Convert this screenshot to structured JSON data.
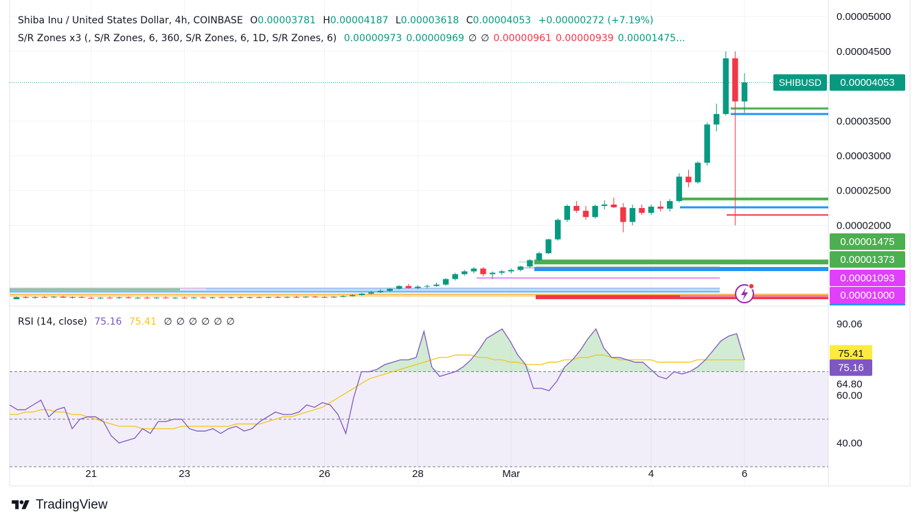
{
  "header": {
    "symbol": "Shiba Inu / United States Dollar, 4h, COINBASE",
    "o_label": "O",
    "o_value": "0.00003781",
    "h_label": "H",
    "h_value": "0.00004187",
    "l_label": "L",
    "l_value": "0.00003618",
    "c_label": "C",
    "c_value": "0.00004053",
    "change": "+0.00000272 (+7.19%)"
  },
  "sr_legend": {
    "label": "S/R Zones x3 (, S/R Zones, 6, 360, S/R Zones, 6, 1D, S/R Zones, 6)",
    "values": [
      {
        "text": "0.00000973",
        "color": "#089981"
      },
      {
        "text": "0.00000969",
        "color": "#089981"
      },
      {
        "text": "∅",
        "color": "#131722"
      },
      {
        "text": "∅",
        "color": "#131722"
      },
      {
        "text": "0.00000961",
        "color": "#f23645"
      },
      {
        "text": "0.00000939",
        "color": "#f23645"
      },
      {
        "text": "0.00001475...",
        "color": "#089981"
      }
    ]
  },
  "rsi_legend": {
    "label": "RSI (14, close)",
    "rsi_value": "75.16",
    "ma_value": "75.41",
    "empties": [
      "∅",
      "∅",
      "∅",
      "∅",
      "∅",
      "∅"
    ]
  },
  "price_badges": [
    {
      "text": "SHIBUSD",
      "bg": "#089981"
    },
    {
      "text": "0.00004053",
      "bg": "#089981"
    }
  ],
  "zone_badges": [
    {
      "text": "0.00001475",
      "bg": "#4caf50",
      "value": 1.475e-05
    },
    {
      "text": "0.00001373",
      "bg": "#4caf50",
      "value": 1.373e-05
    },
    {
      "text": "0.00001093",
      "bg": "#e040fb",
      "value": 1.093e-05
    },
    {
      "text": "0.00001000",
      "bg": "#e040fb",
      "value": 1e-05
    }
  ],
  "rsi_badges": [
    {
      "text": "75.41",
      "bg": "#ffeb3b",
      "fg": "#131722"
    },
    {
      "text": "75.16",
      "bg": "#7e57c2",
      "fg": "#ffffff"
    }
  ],
  "footer": {
    "brand": "TradingView"
  },
  "colors": {
    "up": "#089981",
    "down": "#f23645",
    "rsi": "#7e57c2",
    "rsi_ma": "#f5c518",
    "zone_green": "#4caf50",
    "zone_blue": "#2196f3",
    "zone_red": "#f23645",
    "zone_pink": "#e040fb"
  },
  "chart_data": [
    {
      "type": "candlestick",
      "title": "Shiba Inu / United States Dollar, 4h, COINBASE",
      "y_axis": {
        "scale": "linear",
        "ticks": [
          "0.00005000",
          "0.00004500",
          "0.00003500",
          "0.00003000",
          "0.00002500",
          "0.00002000"
        ],
        "tick_values": [
          5e-05,
          4.5e-05,
          3.5e-05,
          3e-05,
          2.5e-05,
          2e-05
        ],
        "ylim": [
          9e-06,
          5.1e-05
        ]
      },
      "x_axis": {
        "ticks": [
          "21",
          "23",
          "26",
          "28",
          "Mar",
          "4",
          "6"
        ],
        "tick_index": [
          8,
          18,
          33,
          43,
          53,
          68,
          78
        ]
      },
      "last_price": 4.053e-05,
      "candles": [
        [
          9.4e-06,
          9.8e-06,
          9.6e-06,
          9.7e-06
        ],
        [
          9.7e-06,
          9.85e-06,
          9.5e-06,
          9.6e-06
        ],
        [
          9.6e-06,
          9.8e-06,
          9.45e-06,
          9.7e-06
        ],
        [
          9.7e-06,
          9.9e-06,
          9.6e-06,
          9.65e-06
        ],
        [
          9.65e-06,
          9.85e-06,
          9.55e-06,
          9.75e-06
        ],
        [
          9.75e-06,
          9.9e-06,
          9.6e-06,
          9.62e-06
        ],
        [
          9.62e-06,
          9.8e-06,
          9.5e-06,
          9.7e-06
        ],
        [
          9.7e-06,
          9.85e-06,
          9.58e-06,
          9.6e-06
        ],
        [
          9.6e-06,
          9.75e-06,
          9.45e-06,
          9.55e-06
        ],
        [
          9.55e-06,
          9.7e-06,
          9.4e-06,
          9.62e-06
        ],
        [
          9.62e-06,
          9.8e-06,
          9.5e-06,
          9.58e-06
        ],
        [
          9.58e-06,
          9.75e-06,
          9.45e-06,
          9.66e-06
        ],
        [
          9.66e-06,
          9.8e-06,
          9.5e-06,
          9.58e-06
        ],
        [
          9.58e-06,
          9.72e-06,
          9.46e-06,
          9.62e-06
        ],
        [
          9.62e-06,
          9.78e-06,
          9.5e-06,
          9.55e-06
        ],
        [
          9.55e-06,
          9.7e-06,
          9.45e-06,
          9.63e-06
        ],
        [
          9.63e-06,
          9.78e-06,
          9.52e-06,
          9.57e-06
        ],
        [
          9.57e-06,
          9.7e-06,
          9.45e-06,
          9.62e-06
        ],
        [
          9.62e-06,
          9.76e-06,
          9.5e-06,
          9.58e-06
        ],
        [
          9.58e-06,
          9.72e-06,
          9.46e-06,
          9.64e-06
        ],
        [
          9.64e-06,
          9.78e-06,
          9.52e-06,
          9.6e-06
        ],
        [
          9.6e-06,
          9.74e-06,
          9.48e-06,
          9.66e-06
        ],
        [
          9.66e-06,
          9.8e-06,
          9.55e-06,
          9.6e-06
        ],
        [
          9.6e-06,
          9.75e-06,
          9.5e-06,
          9.67e-06
        ],
        [
          9.67e-06,
          9.82e-06,
          9.56e-06,
          9.62e-06
        ],
        [
          9.62e-06,
          9.76e-06,
          9.5e-06,
          9.68e-06
        ],
        [
          9.68e-06,
          9.82e-06,
          9.58e-06,
          9.63e-06
        ],
        [
          9.63e-06,
          9.78e-06,
          9.52e-06,
          9.7e-06
        ],
        [
          9.7e-06,
          9.85e-06,
          9.6e-06,
          9.66e-06
        ],
        [
          9.66e-06,
          9.8e-06,
          9.55e-06,
          9.72e-06
        ],
        [
          9.72e-06,
          9.88e-06,
          9.62e-06,
          9.68e-06
        ],
        [
          9.68e-06,
          9.82e-06,
          9.58e-06,
          9.75e-06
        ],
        [
          9.75e-06,
          9.9e-06,
          9.65e-06,
          9.7e-06
        ],
        [
          9.7e-06,
          9.85e-06,
          9.6e-06,
          9.66e-06
        ],
        [
          9.66e-06,
          9.82e-06,
          9.58e-06,
          9.74e-06
        ],
        [
          9.74e-06,
          9.95e-06,
          9.68e-06,
          9.85e-06
        ],
        [
          9.85e-06,
          1.01e-05,
          9.78e-06,
          1e-05
        ],
        [
          1e-05,
          1.03e-05,
          9.92e-06,
          1.02e-05
        ],
        [
          1.02e-05,
          1.06e-05,
          1.01e-05,
          1.04e-05
        ],
        [
          1.04e-05,
          1.08e-05,
          1.03e-05,
          1.06e-05
        ],
        [
          1.06e-05,
          1.1e-05,
          1.045e-05,
          1.09e-05
        ],
        [
          1.09e-05,
          1.14e-05,
          1.08e-05,
          1.13e-05
        ],
        [
          1.13e-05,
          1.16e-05,
          1.09e-05,
          1.1e-05
        ],
        [
          1.1e-05,
          1.14e-05,
          1.085e-05,
          1.12e-05
        ],
        [
          1.12e-05,
          1.15e-05,
          1.095e-05,
          1.13e-05
        ],
        [
          1.13e-05,
          1.18e-05,
          1.12e-05,
          1.15e-05
        ],
        [
          1.15e-05,
          1.24e-05,
          1.13e-05,
          1.23e-05
        ],
        [
          1.23e-05,
          1.32e-05,
          1.21e-05,
          1.3e-05
        ],
        [
          1.3e-05,
          1.36e-05,
          1.28e-05,
          1.34e-05
        ],
        [
          1.34e-05,
          1.4e-05,
          1.31e-05,
          1.38e-05
        ],
        [
          1.38e-05,
          1.4e-05,
          1.27e-05,
          1.3e-05
        ],
        [
          1.3e-05,
          1.34e-05,
          1.23e-05,
          1.32e-05
        ],
        [
          1.32e-05,
          1.36e-05,
          1.29e-05,
          1.34e-05
        ],
        [
          1.34e-05,
          1.38e-05,
          1.31e-05,
          1.36e-05
        ],
        [
          1.36e-05,
          1.42e-05,
          1.34e-05,
          1.41e-05
        ],
        [
          1.41e-05,
          1.52e-05,
          1.39e-05,
          1.5e-05
        ],
        [
          1.5e-05,
          1.62e-05,
          1.48e-05,
          1.6e-05
        ],
        [
          1.6e-05,
          1.81e-05,
          1.59e-05,
          1.8e-05
        ],
        [
          1.8e-05,
          2.1e-05,
          1.78e-05,
          2.08e-05
        ],
        [
          2.08e-05,
          2.3e-05,
          2.05e-05,
          2.28e-05
        ],
        [
          2.28e-05,
          2.35e-05,
          2.18e-05,
          2.21e-05
        ],
        [
          2.21e-05,
          2.28e-05,
          2.08e-05,
          2.12e-05
        ],
        [
          2.12e-05,
          2.3e-05,
          2.1e-05,
          2.28e-05
        ],
        [
          2.28e-05,
          2.36e-05,
          2.23e-05,
          2.3e-05
        ],
        [
          2.3e-05,
          2.4e-05,
          2.25e-05,
          2.26e-05
        ],
        [
          2.26e-05,
          2.32e-05,
          1.9e-05,
          2.05e-05
        ],
        [
          2.05e-05,
          2.3e-05,
          2e-05,
          2.25e-05
        ],
        [
          2.25e-05,
          2.3e-05,
          2.15e-05,
          2.18e-05
        ],
        [
          2.18e-05,
          2.3e-05,
          2.15e-05,
          2.27e-05
        ],
        [
          2.27e-05,
          2.35e-05,
          2.2e-05,
          2.24e-05
        ],
        [
          2.24e-05,
          2.38e-05,
          2.2e-05,
          2.35e-05
        ],
        [
          2.35e-05,
          2.75e-05,
          2.33e-05,
          2.7e-05
        ],
        [
          2.7e-05,
          2.8e-05,
          2.55e-05,
          2.62e-05
        ],
        [
          2.62e-05,
          2.92e-05,
          2.6e-05,
          2.9e-05
        ],
        [
          2.9e-05,
          3.48e-05,
          2.86e-05,
          3.45e-05
        ],
        [
          3.45e-05,
          3.75e-05,
          3.35e-05,
          3.6e-05
        ],
        [
          3.6e-05,
          4.5e-05,
          3.58e-05,
          4.4e-05
        ],
        [
          4.4e-05,
          4.5e-05,
          2e-05,
          3.781e-05
        ],
        [
          3.781e-05,
          4.187e-05,
          3.618e-05,
          4.053e-05
        ]
      ]
    },
    {
      "type": "line",
      "title": "RSI (14, close)",
      "y_axis": {
        "ticks": [
          "90.06",
          "64.80",
          "60.00",
          "40.00"
        ],
        "ylim": [
          30,
          95
        ]
      },
      "bands": {
        "upper": 70,
        "middle": 50,
        "lower": 30
      },
      "series": [
        {
          "name": "RSI",
          "values": [
            56,
            54,
            54,
            56,
            58,
            51,
            54,
            55,
            46,
            50,
            51,
            51,
            49,
            43,
            40,
            41,
            42,
            46,
            44,
            49,
            49,
            50,
            50,
            46,
            45,
            45,
            46,
            44,
            46,
            47,
            45,
            46,
            49,
            51,
            53,
            52,
            52,
            53,
            56,
            55,
            57,
            56,
            52,
            44,
            59,
            70,
            70,
            71,
            73,
            74,
            75,
            75,
            76,
            87,
            72,
            68,
            69,
            70,
            72,
            75,
            79,
            84,
            86,
            88,
            83,
            77,
            73,
            63,
            63,
            62,
            66,
            72,
            75,
            79,
            84,
            88,
            80,
            76,
            76,
            75,
            74,
            74,
            71,
            68,
            67,
            70,
            69,
            70,
            72,
            75,
            79,
            83,
            85,
            86,
            75
          ]
        },
        {
          "name": "MA",
          "values": [
            52,
            52,
            53,
            53,
            54,
            54,
            53,
            53,
            52,
            52,
            51,
            50,
            49,
            48,
            47,
            47,
            47,
            46,
            46,
            46,
            46,
            46,
            47,
            47,
            47,
            47,
            47,
            47,
            47,
            48,
            48,
            48,
            48,
            49,
            50,
            51,
            51,
            52,
            53,
            54,
            55,
            57,
            59,
            61,
            63,
            65,
            67,
            68,
            69,
            70,
            71,
            72,
            73,
            74,
            75,
            76,
            76,
            77,
            77,
            77,
            76,
            76,
            75,
            75,
            74,
            74,
            73,
            73,
            73,
            74,
            74,
            75,
            75,
            76,
            76,
            77,
            77,
            76,
            75,
            75,
            75,
            75,
            75,
            74,
            74,
            74,
            74,
            74,
            75,
            75,
            75,
            75,
            75,
            75,
            75
          ]
        }
      ]
    }
  ]
}
